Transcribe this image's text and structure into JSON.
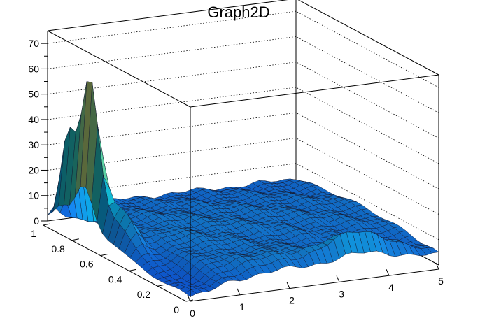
{
  "chart_data": {
    "type": "surface",
    "title": "Graph2D",
    "xlim": [
      0,
      5
    ],
    "ylim": [
      0,
      1
    ],
    "zlim": [
      0,
      75
    ],
    "x_ticks": [
      "0",
      "1",
      "2",
      "3",
      "4",
      "5"
    ],
    "y_ticks": [
      "0",
      "0.2",
      "0.4",
      "0.6",
      "0.8",
      "1"
    ],
    "z_ticks": [
      "0",
      "10",
      "20",
      "30",
      "40",
      "50",
      "60",
      "70"
    ],
    "grid": true,
    "colormap": [
      "#352a87",
      "#0f5cdd",
      "#1481d6",
      "#06a4ca",
      "#2eb7a4",
      "#87bf77",
      "#d1bb59",
      "#fec832",
      "#f9fb0e"
    ],
    "features": [
      {
        "desc": "main peak",
        "x": 0.15,
        "y": 0.75,
        "z": 64
      },
      {
        "desc": "secondary peak",
        "x": 0.15,
        "y": 0.9,
        "z": 36
      },
      {
        "desc": "ridge near x=3.5",
        "x": 3.5,
        "y": 0.05,
        "z": 12
      },
      {
        "desc": "plateau",
        "x": 2.5,
        "y": 0.5,
        "z": 9
      }
    ]
  }
}
